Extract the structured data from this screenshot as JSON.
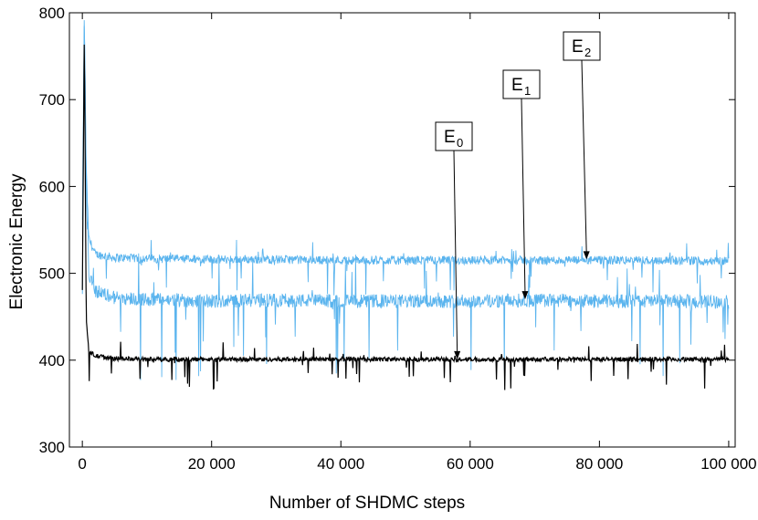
{
  "chart_data": {
    "type": "line",
    "title": "",
    "xlabel": "Number of SHDMC steps",
    "ylabel": "Electronic Energy",
    "xlim": [
      -2000,
      101000
    ],
    "ylim": [
      300,
      800
    ],
    "x_ticks": [
      0,
      20000,
      40000,
      60000,
      80000,
      100000
    ],
    "x_tick_labels": [
      "0",
      "20 000",
      "40 000",
      "60 000",
      "80 000",
      "100 000"
    ],
    "y_ticks": [
      300,
      400,
      500,
      600,
      700,
      800
    ],
    "y_tick_labels": [
      "300",
      "400",
      "500",
      "600",
      "700",
      "800"
    ],
    "grid": false,
    "series": [
      {
        "color": "#5ab4ee",
        "x": [
          0,
          300,
          600,
          1000,
          2000,
          5000,
          10000,
          20000,
          30000,
          40000,
          50000,
          60000,
          70000,
          80000,
          90000,
          100000
        ],
        "values": [
          560,
          800,
          620,
          540,
          522,
          518,
          517,
          516,
          516,
          515,
          515,
          515,
          515,
          515,
          515,
          514
        ]
      },
      {
        "color": "#5ab4ee",
        "x": [
          0,
          300,
          600,
          1000,
          2000,
          5000,
          10000,
          20000,
          30000,
          40000,
          50000,
          60000,
          70000,
          80000,
          90000,
          100000
        ],
        "values": [
          480,
          800,
          600,
          500,
          480,
          472,
          470,
          468,
          469,
          468,
          468,
          468,
          469,
          468,
          468,
          467
        ]
      },
      {
        "color": "#000000",
        "x": [
          0,
          300,
          600,
          1000,
          2000,
          5000,
          10000,
          20000,
          30000,
          40000,
          50000,
          60000,
          70000,
          80000,
          90000,
          100000
        ],
        "values": [
          480,
          780,
          450,
          410,
          405,
          402,
          401,
          401,
          401,
          401,
          401,
          401,
          401,
          401,
          401,
          401
        ]
      }
    ],
    "annotations": [
      {
        "label": "E",
        "sub": "0",
        "arrow_to": [
          58000,
          401
        ]
      },
      {
        "label": "E",
        "sub": "1",
        "arrow_to": [
          68500,
          470
        ]
      },
      {
        "label": "E",
        "sub": "2",
        "arrow_to": [
          78000,
          516
        ]
      }
    ]
  }
}
